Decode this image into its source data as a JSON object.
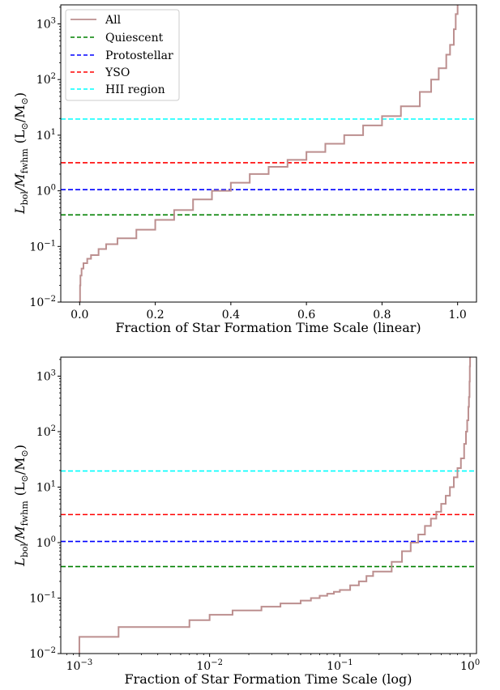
{
  "chart_data": [
    {
      "type": "line",
      "xscale": "linear",
      "yscale": "log",
      "xlabel": "Fraction of Star Formation Time Scale (linear)",
      "ylabel_main": "L",
      "ylabel_main_sub": "bol",
      "ylabel_div": "/M",
      "ylabel_div_sub": "fwhm",
      "ylabel_units_open": "(L",
      "ylabel_units_sym1": "⊙",
      "ylabel_units_mid": "/M",
      "ylabel_units_sym2": "⊙",
      "ylabel_units_close": ")",
      "xlim": [
        -0.05,
        1.05
      ],
      "ylim": [
        0.01,
        2200
      ],
      "xticks": [
        {
          "value": 0.0,
          "label": "0.0"
        },
        {
          "value": 0.2,
          "label": "0.2"
        },
        {
          "value": 0.4,
          "label": "0.4"
        },
        {
          "value": 0.6,
          "label": "0.6"
        },
        {
          "value": 0.8,
          "label": "0.8"
        },
        {
          "value": 1.0,
          "label": "1.0"
        }
      ],
      "yticks": [
        {
          "value": 0.01,
          "base": "10",
          "exp": "−2"
        },
        {
          "value": 0.1,
          "base": "10",
          "exp": "−1"
        },
        {
          "value": 1,
          "base": "10",
          "exp": "0"
        },
        {
          "value": 10,
          "base": "10",
          "exp": "1"
        },
        {
          "value": 100,
          "base": "10",
          "exp": "2"
        },
        {
          "value": 1000,
          "base": "10",
          "exp": "3"
        }
      ],
      "legend": {
        "placement": "upper-left",
        "entries": [
          {
            "label": "All",
            "color": "#bc8f8f",
            "style": "solid"
          },
          {
            "label": "Quiescent",
            "color": "#008000",
            "style": "dashed"
          },
          {
            "label": "Protostellar",
            "color": "#0000ff",
            "style": "dashed"
          },
          {
            "label": "YSO",
            "color": "#ff0000",
            "style": "dashed"
          },
          {
            "label": "HII region",
            "color": "#00ffff",
            "style": "dashed"
          }
        ]
      },
      "hlines": [
        {
          "name": "Quiescent",
          "value": 0.37,
          "color": "#008000"
        },
        {
          "name": "Protostellar",
          "value": 1.05,
          "color": "#0000ff"
        },
        {
          "name": "YSO",
          "value": 3.2,
          "color": "#ff0000"
        },
        {
          "name": "HII region",
          "value": 19.5,
          "color": "#00ffff"
        }
      ],
      "series": [
        {
          "name": "All",
          "color": "#bc8f8f",
          "step": true,
          "x": [
            0.0,
            0.001,
            0.002,
            0.005,
            0.01,
            0.02,
            0.03,
            0.05,
            0.07,
            0.1,
            0.15,
            0.2,
            0.25,
            0.3,
            0.35,
            0.4,
            0.45,
            0.5,
            0.55,
            0.6,
            0.65,
            0.7,
            0.75,
            0.8,
            0.85,
            0.9,
            0.93,
            0.95,
            0.97,
            0.98,
            0.99,
            0.995,
            1.0
          ],
          "y": [
            0.01,
            0.02,
            0.03,
            0.04,
            0.05,
            0.06,
            0.07,
            0.09,
            0.11,
            0.14,
            0.2,
            0.3,
            0.45,
            0.7,
            1.0,
            1.4,
            2.0,
            2.7,
            3.6,
            5.0,
            7.0,
            10.0,
            15.0,
            22.0,
            33.0,
            60.0,
            100.0,
            160.0,
            280.0,
            420.0,
            800.0,
            1500.0,
            2400.0
          ]
        }
      ]
    },
    {
      "type": "line",
      "xscale": "log",
      "yscale": "log",
      "xlabel": "Fraction of Star Formation Time Scale (log)",
      "ylabel_main": "L",
      "ylabel_main_sub": "bol",
      "ylabel_div": "/M",
      "ylabel_div_sub": "fwhm",
      "ylabel_units_open": "(L",
      "ylabel_units_sym1": "⊙",
      "ylabel_units_mid": "/M",
      "ylabel_units_sym2": "⊙",
      "ylabel_units_close": ")",
      "xlim": [
        0.00072,
        1.12
      ],
      "ylim": [
        0.01,
        2200
      ],
      "xticks": [
        {
          "value": 0.001,
          "base": "10",
          "exp": "−3"
        },
        {
          "value": 0.01,
          "base": "10",
          "exp": "−2"
        },
        {
          "value": 0.1,
          "base": "10",
          "exp": "−1"
        },
        {
          "value": 1,
          "base": "10",
          "exp": "0"
        }
      ],
      "yticks": [
        {
          "value": 0.01,
          "base": "10",
          "exp": "−2"
        },
        {
          "value": 0.1,
          "base": "10",
          "exp": "−1"
        },
        {
          "value": 1,
          "base": "10",
          "exp": "0"
        },
        {
          "value": 10,
          "base": "10",
          "exp": "1"
        },
        {
          "value": 100,
          "base": "10",
          "exp": "2"
        },
        {
          "value": 1000,
          "base": "10",
          "exp": "3"
        }
      ],
      "hlines": [
        {
          "name": "Quiescent",
          "value": 0.37,
          "color": "#008000"
        },
        {
          "name": "Protostellar",
          "value": 1.05,
          "color": "#0000ff"
        },
        {
          "name": "YSO",
          "value": 3.2,
          "color": "#ff0000"
        },
        {
          "name": "HII region",
          "value": 19.5,
          "color": "#00ffff"
        }
      ],
      "series": [
        {
          "name": "All",
          "color": "#bc8f8f",
          "step": true,
          "x": [
            0.001,
            0.002,
            0.007,
            0.01,
            0.015,
            0.025,
            0.035,
            0.05,
            0.06,
            0.07,
            0.08,
            0.09,
            0.1,
            0.12,
            0.14,
            0.16,
            0.18,
            0.2,
            0.25,
            0.3,
            0.35,
            0.4,
            0.45,
            0.5,
            0.55,
            0.6,
            0.65,
            0.7,
            0.75,
            0.8,
            0.85,
            0.9,
            0.93,
            0.95,
            0.97,
            0.98,
            0.99,
            0.995,
            1.0
          ],
          "y": [
            0.02,
            0.03,
            0.04,
            0.05,
            0.06,
            0.07,
            0.08,
            0.09,
            0.1,
            0.11,
            0.12,
            0.13,
            0.14,
            0.17,
            0.2,
            0.25,
            0.3,
            0.3,
            0.45,
            0.7,
            1.0,
            1.4,
            2.0,
            2.7,
            3.6,
            5.0,
            7.0,
            10.0,
            15.0,
            22.0,
            33.0,
            60.0,
            100.0,
            160.0,
            280.0,
            420.0,
            800.0,
            1500.0,
            2400.0
          ]
        }
      ]
    }
  ]
}
